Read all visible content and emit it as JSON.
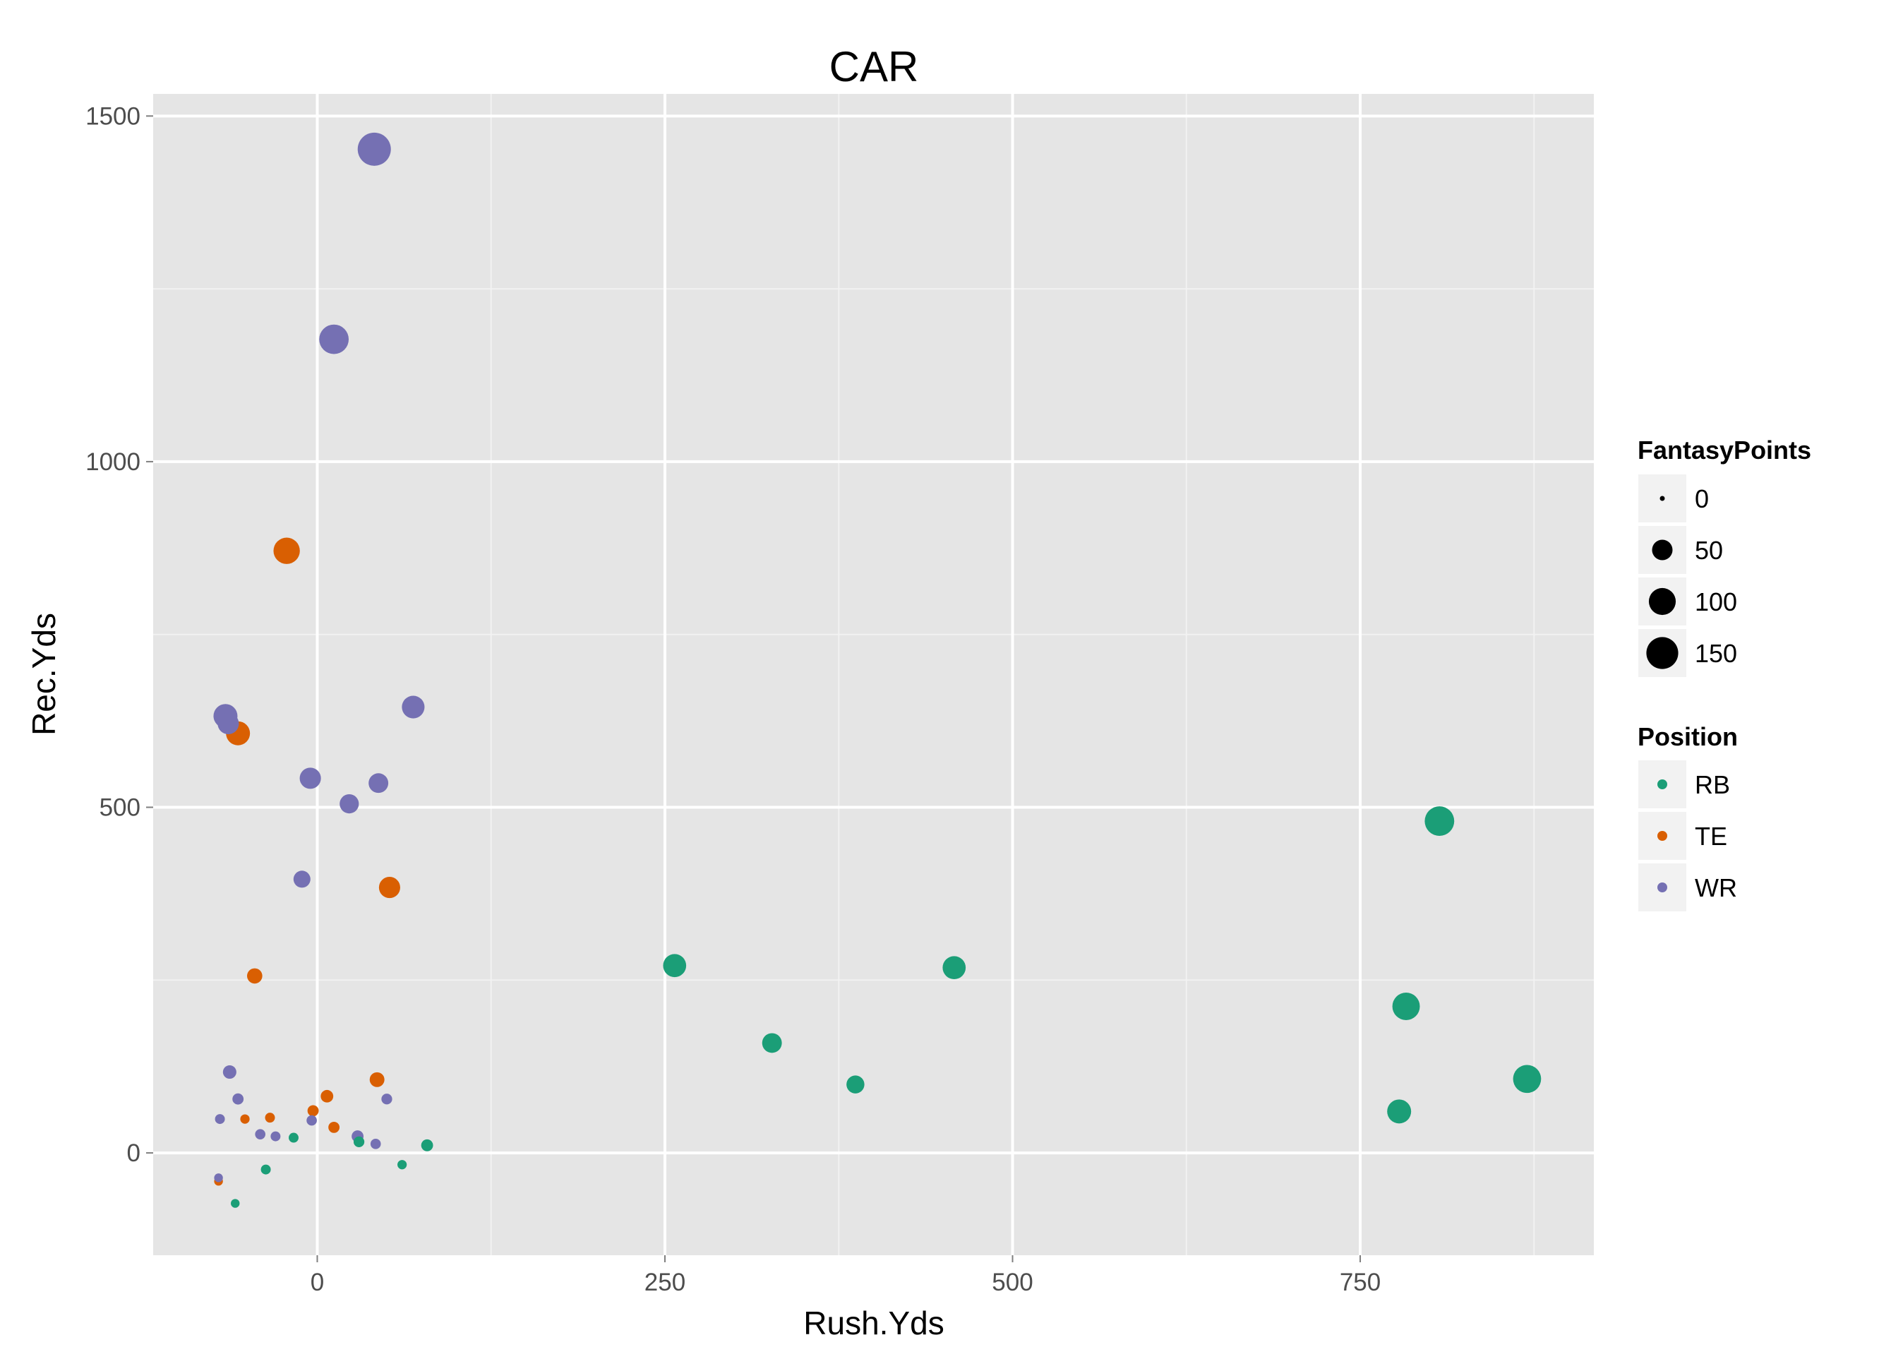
{
  "chart_data": {
    "type": "scatter",
    "title": "CAR",
    "xlabel": "Rush.Yds",
    "ylabel": "Rec.Yds",
    "xlim": [
      -118,
      918
    ],
    "ylim": [
      -148,
      1532
    ],
    "xticks": [
      0,
      250,
      500,
      750
    ],
    "yticks": [
      0,
      500,
      1000,
      1500
    ],
    "grid": true,
    "legend_position": "right",
    "size_legend": {
      "title": "FantasyPoints",
      "entries": [
        {
          "label": "0",
          "value": 0
        },
        {
          "label": "50",
          "value": 50
        },
        {
          "label": "100",
          "value": 100
        },
        {
          "label": "150",
          "value": 150
        }
      ]
    },
    "color_legend": {
      "title": "Position",
      "entries": [
        {
          "label": "RB",
          "color": "#1b9e77"
        },
        {
          "label": "TE",
          "color": "#d95f02"
        },
        {
          "label": "WR",
          "color": "#7570b3"
        }
      ]
    },
    "series": [
      {
        "name": "RB",
        "color": "#1b9e77",
        "points": [
          {
            "x": 807,
            "y": 480,
            "size": 125
          },
          {
            "x": 783,
            "y": 212,
            "size": 105
          },
          {
            "x": 870,
            "y": 107,
            "size": 110
          },
          {
            "x": 778,
            "y": 60,
            "size": 75
          },
          {
            "x": 257,
            "y": 271,
            "size": 68
          },
          {
            "x": 458,
            "y": 268,
            "size": 68
          },
          {
            "x": 327,
            "y": 159,
            "size": 45
          },
          {
            "x": 387,
            "y": 99,
            "size": 35
          },
          {
            "x": 79,
            "y": 11,
            "size": 10
          },
          {
            "x": 30,
            "y": 16,
            "size": 7
          },
          {
            "x": -17,
            "y": 22,
            "size": 5
          },
          {
            "x": -37,
            "y": -24,
            "size": 5
          },
          {
            "x": 61,
            "y": -17,
            "size": 4
          },
          {
            "x": -59,
            "y": -73,
            "size": 3
          }
        ]
      },
      {
        "name": "TE",
        "color": "#d95f02",
        "points": [
          {
            "x": -22,
            "y": 871,
            "size": 95
          },
          {
            "x": -57,
            "y": 607,
            "size": 75
          },
          {
            "x": 52,
            "y": 384,
            "size": 55
          },
          {
            "x": -45,
            "y": 256,
            "size": 22
          },
          {
            "x": 43,
            "y": 106,
            "size": 20
          },
          {
            "x": 7,
            "y": 82,
            "size": 12
          },
          {
            "x": -3,
            "y": 61,
            "size": 8
          },
          {
            "x": 12,
            "y": 37,
            "size": 8
          },
          {
            "x": -34,
            "y": 51,
            "size": 5
          },
          {
            "x": -52,
            "y": 49,
            "size": 4
          },
          {
            "x": -71,
            "y": -41,
            "size": 3
          }
        ]
      },
      {
        "name": "WR",
        "color": "#7570b3",
        "points": [
          {
            "x": 41,
            "y": 1452,
            "size": 165
          },
          {
            "x": 12,
            "y": 1177,
            "size": 125
          },
          {
            "x": -66,
            "y": 632,
            "size": 75
          },
          {
            "x": -64,
            "y": 621,
            "size": 55
          },
          {
            "x": 69,
            "y": 645,
            "size": 65
          },
          {
            "x": -5,
            "y": 542,
            "size": 55
          },
          {
            "x": 44,
            "y": 535,
            "size": 45
          },
          {
            "x": 23,
            "y": 505,
            "size": 42
          },
          {
            "x": -11,
            "y": 396,
            "size": 30
          },
          {
            "x": -63,
            "y": 117,
            "size": 15
          },
          {
            "x": -57,
            "y": 78,
            "size": 8
          },
          {
            "x": 50,
            "y": 78,
            "size": 7
          },
          {
            "x": -70,
            "y": 49,
            "size": 5
          },
          {
            "x": -4,
            "y": 47,
            "size": 6
          },
          {
            "x": -41,
            "y": 27,
            "size": 6
          },
          {
            "x": -30,
            "y": 24,
            "size": 5
          },
          {
            "x": 29,
            "y": 24,
            "size": 10
          },
          {
            "x": 42,
            "y": 13,
            "size": 6
          },
          {
            "x": -71,
            "y": -36,
            "size": 3
          }
        ]
      }
    ]
  }
}
